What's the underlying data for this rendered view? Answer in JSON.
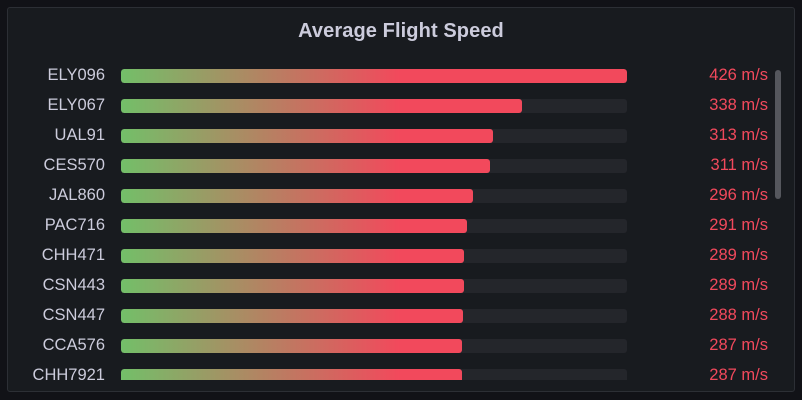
{
  "panel": {
    "title": "Average Flight Speed"
  },
  "colors": {
    "gradient_start": "#73bf69",
    "gradient_end": "#f2495c",
    "value_text": "#f2495c",
    "track": "#24262b"
  },
  "scale": {
    "max": 426,
    "unit": "m/s"
  },
  "rows": [
    {
      "flight": "ELY096",
      "value": 426,
      "value_label": "426 m/s"
    },
    {
      "flight": "ELY067",
      "value": 338,
      "value_label": "338 m/s"
    },
    {
      "flight": "UAL91",
      "value": 313,
      "value_label": "313 m/s"
    },
    {
      "flight": "CES570",
      "value": 311,
      "value_label": "311 m/s"
    },
    {
      "flight": "JAL860",
      "value": 296,
      "value_label": "296 m/s"
    },
    {
      "flight": "PAC716",
      "value": 291,
      "value_label": "291 m/s"
    },
    {
      "flight": "CHH471",
      "value": 289,
      "value_label": "289 m/s"
    },
    {
      "flight": "CSN443",
      "value": 289,
      "value_label": "289 m/s"
    },
    {
      "flight": "CSN447",
      "value": 288,
      "value_label": "288 m/s"
    },
    {
      "flight": "CCA576",
      "value": 287,
      "value_label": "287 m/s"
    },
    {
      "flight": "CHH7921",
      "value": 287,
      "value_label": "287 m/s"
    }
  ]
}
